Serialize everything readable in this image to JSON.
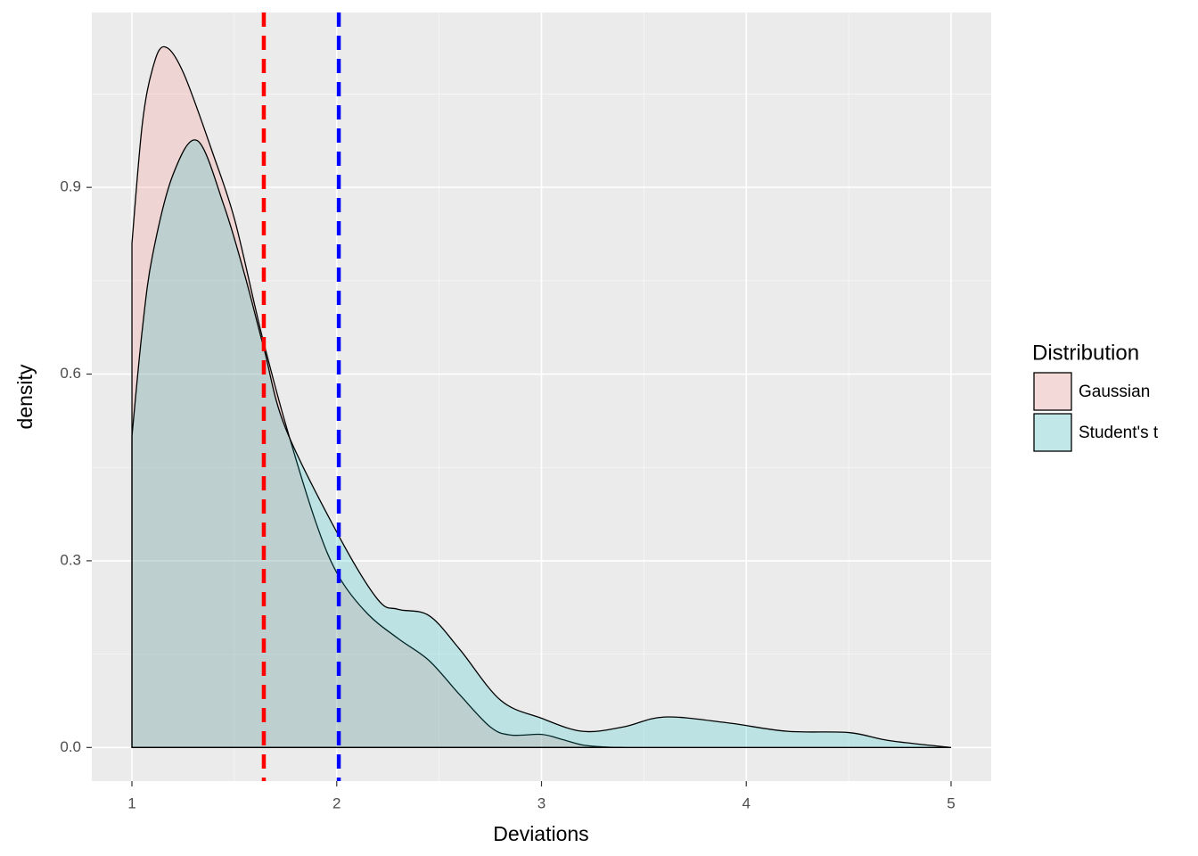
{
  "chart_data": {
    "type": "density",
    "x_label": "Deviations",
    "y_label": "density",
    "xlim": [
      0.804,
      5.196
    ],
    "ylim": [
      -0.054,
      1.181
    ],
    "xticks": [
      1,
      2,
      3,
      4,
      5
    ],
    "yticks": [
      {
        "value": 0,
        "label": "0.0"
      },
      0.3,
      0.6,
      0.9
    ],
    "xminor": [
      1.5,
      2.5,
      3.5,
      4.5
    ],
    "yminor": [
      0.15,
      0.45,
      0.75,
      1.05
    ],
    "grid": true,
    "legend_title": "Distribution",
    "legend_position": "right",
    "series": [
      {
        "name": "Gaussian",
        "color": "#F8766D",
        "opacity": 0.2,
        "x": [
          1.0,
          1.05,
          1.1,
          1.157,
          1.25,
          1.4,
          1.5,
          1.6,
          1.644,
          1.75,
          1.9,
          2.01,
          2.15,
          2.3,
          2.45,
          2.6,
          2.75,
          2.85,
          3.0,
          3.1,
          3.2,
          3.3,
          3.4
        ],
        "values": [
          0.81,
          1.0,
          1.09,
          1.126,
          1.085,
          0.95,
          0.85,
          0.71,
          0.65,
          0.52,
          0.36,
          0.275,
          0.215,
          0.175,
          0.14,
          0.085,
          0.033,
          0.02,
          0.021,
          0.013,
          0.004,
          0.001,
          0
        ]
      },
      {
        "name": "Student's t",
        "color": "#00BFC4",
        "opacity": 0.2,
        "x": [
          1.0,
          1.05,
          1.1,
          1.2,
          1.32,
          1.45,
          1.55,
          1.644,
          1.75,
          2.01,
          2.2,
          2.3,
          2.45,
          2.6,
          2.8,
          3.0,
          3.2,
          3.4,
          3.6,
          3.9,
          4.2,
          4.5,
          4.7,
          5.0
        ],
        "values": [
          0.5,
          0.67,
          0.79,
          0.92,
          0.975,
          0.87,
          0.76,
          0.642,
          0.513,
          0.34,
          0.238,
          0.222,
          0.212,
          0.158,
          0.076,
          0.047,
          0.026,
          0.033,
          0.049,
          0.04,
          0.026,
          0.024,
          0.011,
          0
        ]
      }
    ],
    "vlines": [
      {
        "value": 1.644,
        "color": "#FF0000"
      },
      {
        "value": 2.01,
        "color": "#0000FF"
      }
    ]
  }
}
